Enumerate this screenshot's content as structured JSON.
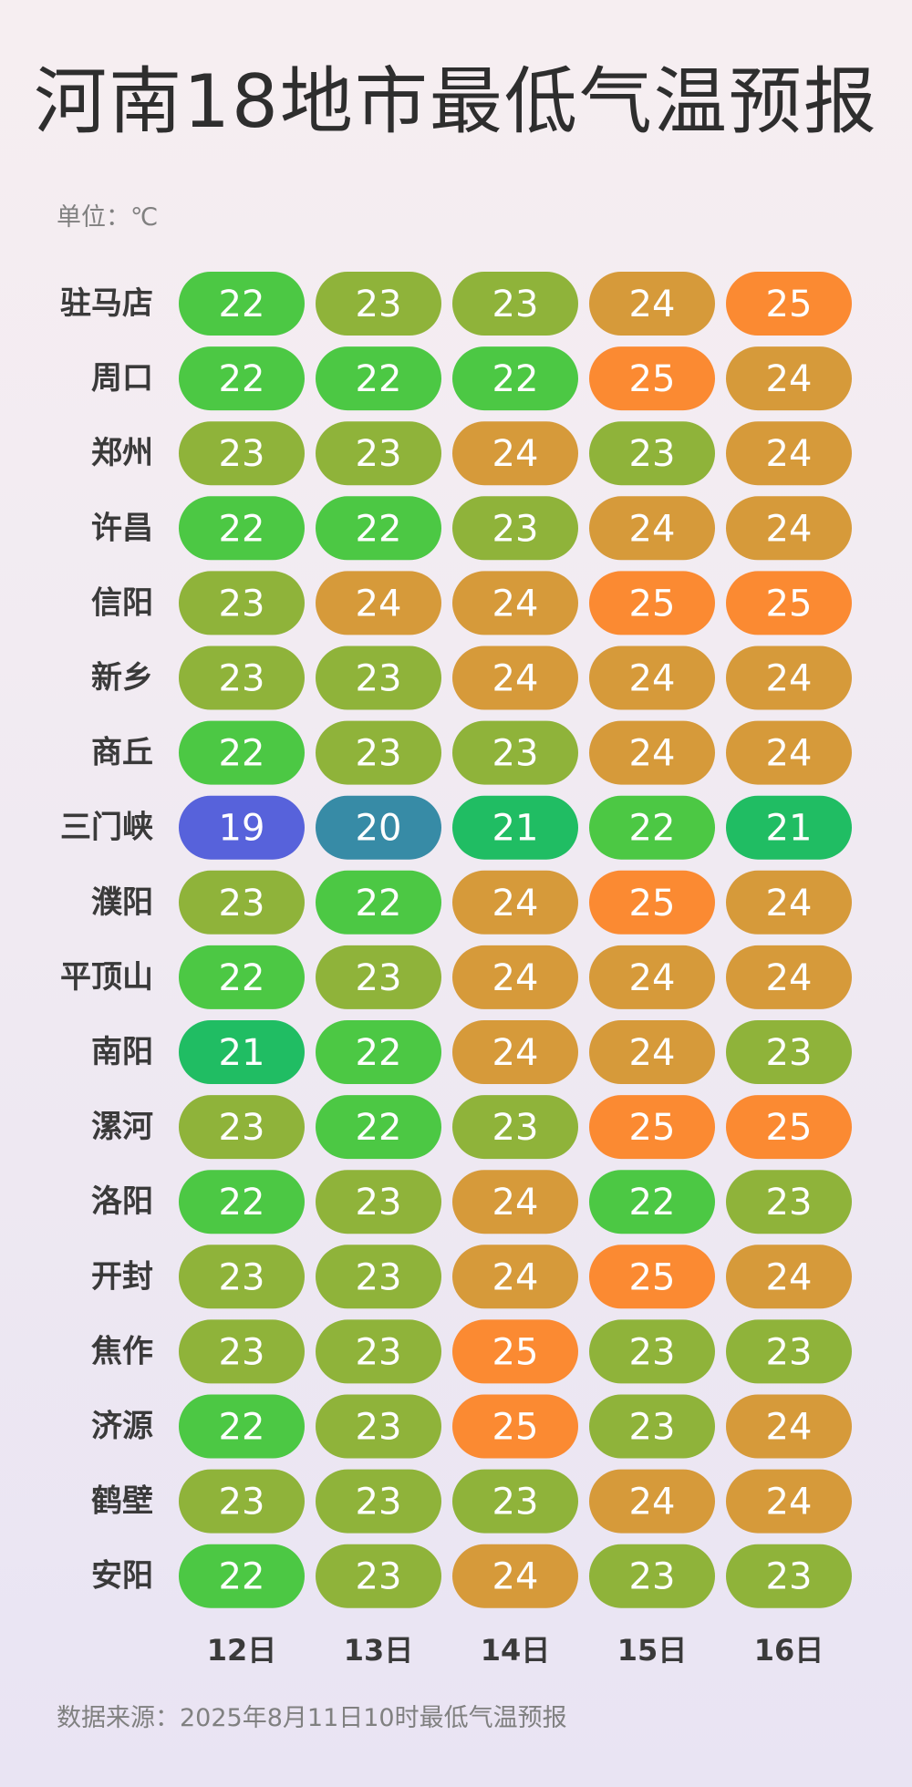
{
  "title": "河南18地市最低气温预报",
  "unit": "单位：℃",
  "source": "数据来源：2025年8月11日10时最低气温预报",
  "chart_data": {
    "type": "heatmap",
    "x": [
      "12日",
      "13日",
      "14日",
      "15日",
      "16日"
    ],
    "y": [
      "驻马店",
      "周口",
      "郑州",
      "许昌",
      "信阳",
      "新乡",
      "商丘",
      "三门峡",
      "濮阳",
      "平顶山",
      "南阳",
      "漯河",
      "洛阳",
      "开封",
      "焦作",
      "济源",
      "鹤壁",
      "安阳"
    ],
    "values": [
      [
        22,
        23,
        23,
        24,
        25
      ],
      [
        22,
        22,
        22,
        25,
        24
      ],
      [
        23,
        23,
        24,
        23,
        24
      ],
      [
        22,
        22,
        23,
        24,
        24
      ],
      [
        23,
        24,
        24,
        25,
        25
      ],
      [
        23,
        23,
        24,
        24,
        24
      ],
      [
        22,
        23,
        23,
        24,
        24
      ],
      [
        19,
        20,
        21,
        22,
        21
      ],
      [
        23,
        22,
        24,
        25,
        24
      ],
      [
        22,
        23,
        24,
        24,
        24
      ],
      [
        21,
        22,
        24,
        24,
        23
      ],
      [
        23,
        22,
        23,
        25,
        25
      ],
      [
        22,
        23,
        24,
        22,
        23
      ],
      [
        23,
        23,
        24,
        25,
        24
      ],
      [
        23,
        23,
        25,
        23,
        23
      ],
      [
        22,
        23,
        25,
        23,
        24
      ],
      [
        23,
        23,
        23,
        24,
        24
      ],
      [
        22,
        23,
        24,
        23,
        23
      ]
    ],
    "color_scale": {
      "19": "#5762db",
      "20": "#378ba6",
      "21": "#20bd63",
      "22": "#4cc844",
      "23": "#8fb33a",
      "24": "#d69a3a",
      "25": "#fb8a32"
    }
  }
}
